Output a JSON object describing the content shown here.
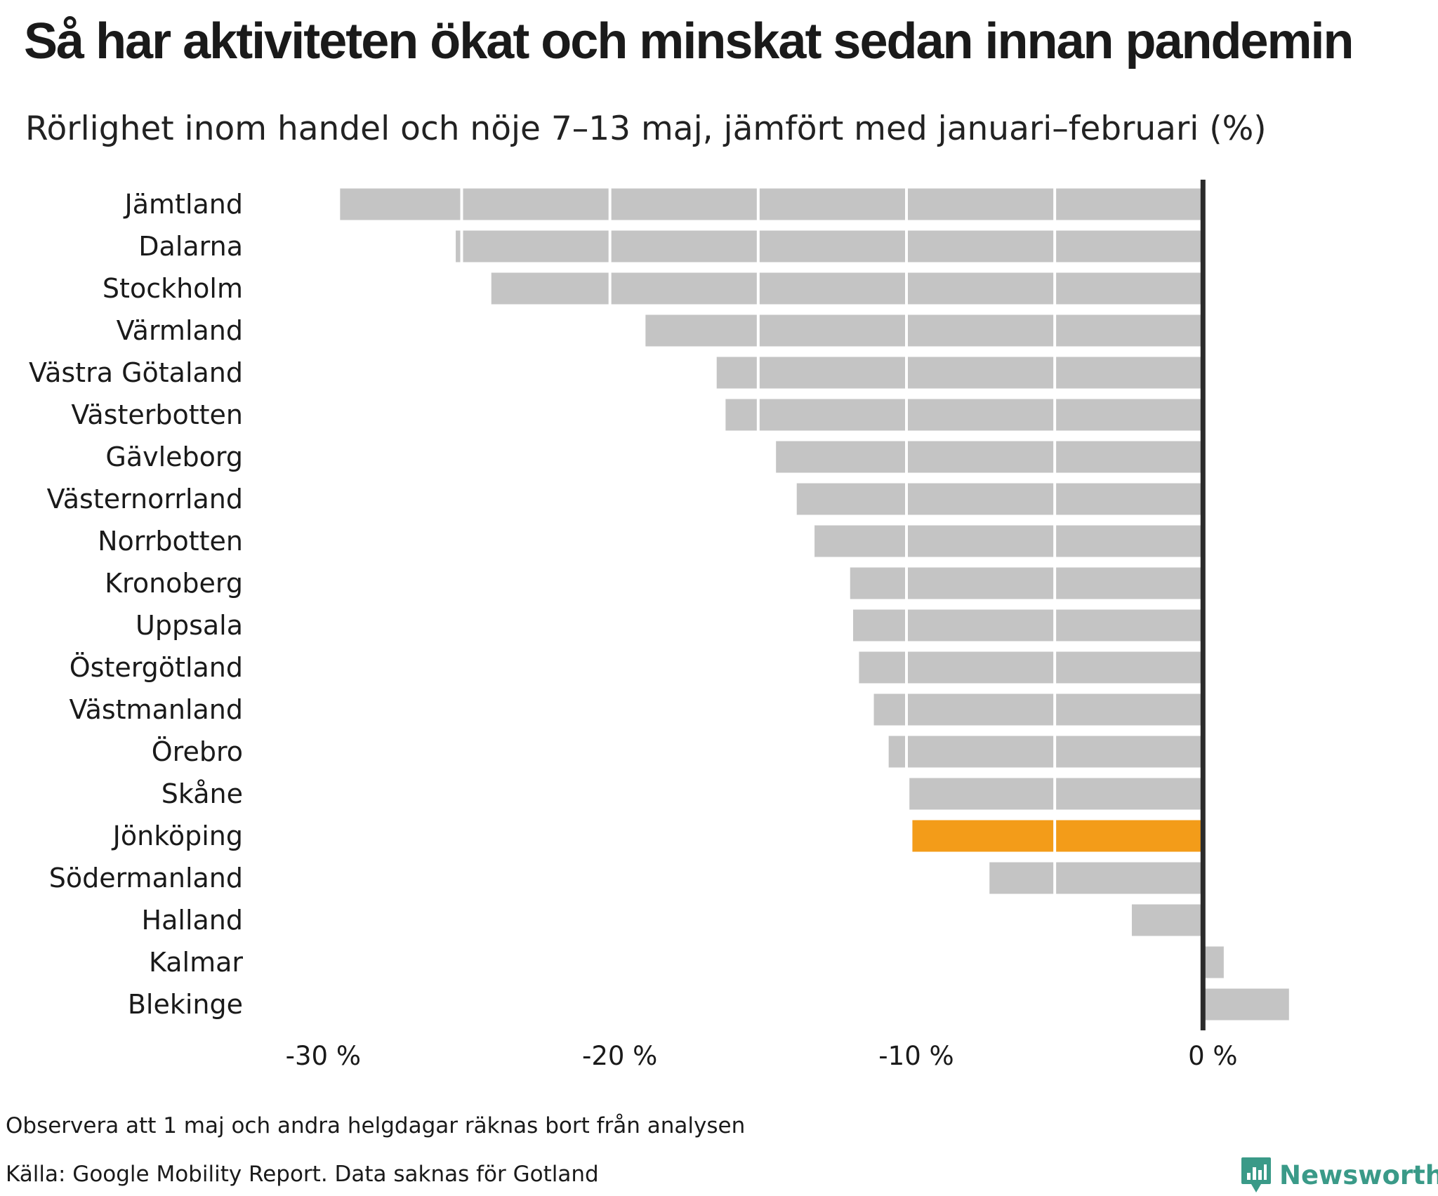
{
  "header": {
    "title": "Så har aktiviteten ökat och minskat sedan innan pandemin",
    "subtitle": "Rörlighet inom handel och nöje 7–13 maj, jämfört med januari–februari (%)"
  },
  "footer": {
    "note": "Observera att 1 maj och andra helgdagar räknas bort från analysen",
    "source": "Källa: Google Mobility Report. Data saknas för Gotland",
    "brand": "Newsworthy",
    "brand_icon": "bar-chart-badge-icon"
  },
  "colors": {
    "bar": "#c4c4c4",
    "highlight": "#f39c19",
    "zero_line": "#2b2b2b",
    "grid": "#ffffff",
    "brand": "#3a9a88"
  },
  "chart_data": {
    "type": "bar",
    "orientation": "horizontal",
    "categories": [
      "Jämtland",
      "Dalarna",
      "Stockholm",
      "Värmland",
      "Västra Götaland",
      "Västerbotten",
      "Gävleborg",
      "Västernorrland",
      "Norrbotten",
      "Kronoberg",
      "Uppsala",
      "Östergötland",
      "Västmanland",
      "Örebro",
      "Skåne",
      "Jönköping",
      "Södermanland",
      "Halland",
      "Kalmar",
      "Blekinge"
    ],
    "values": [
      -29.1,
      -25.2,
      -24.0,
      -18.8,
      -16.4,
      -16.1,
      -14.4,
      -13.7,
      -13.1,
      -11.9,
      -11.8,
      -11.6,
      -11.1,
      -10.6,
      -9.9,
      -9.8,
      -7.2,
      -2.4,
      0.7,
      2.9
    ],
    "highlight": "Jönköping",
    "xlim": [
      -31.5,
      3
    ],
    "xticks": [
      -30,
      -20,
      -10,
      0
    ],
    "xtick_labels": [
      "-30 %",
      "-20 %",
      "-10 %",
      "0 %"
    ],
    "grid_interval": 5,
    "grid": true,
    "legend": false
  }
}
